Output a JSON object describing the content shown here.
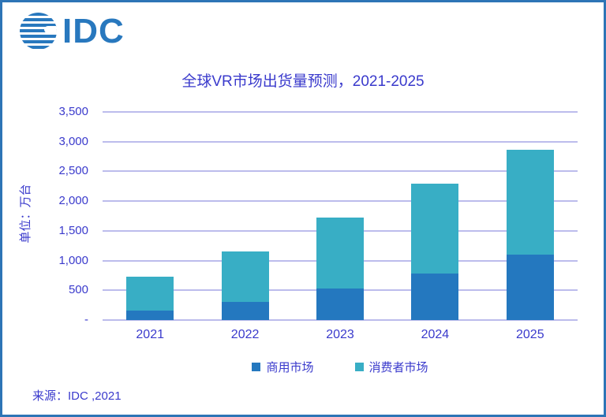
{
  "logo": {
    "text": "IDC"
  },
  "header": {
    "title": "全球VR市场出货量预测，2021-2025"
  },
  "source": "来源：IDC ,2021",
  "colors": {
    "frame_border": "#2e75b6",
    "logo_blue": "#2878be",
    "commercial_blue": "#2478bf",
    "consumer_teal": "#38aec5",
    "text_blue": "#3a3acc",
    "gridline": "#bcbcec",
    "background": "#ffffff"
  },
  "chart_data": {
    "type": "bar",
    "stacked": true,
    "title": "全球VR市场出货量预测，2021-2025",
    "xlabel": "",
    "ylabel": "单位：万台",
    "categories": [
      "2021",
      "2022",
      "2023",
      "2024",
      "2025"
    ],
    "series": [
      {
        "name": "商用市场",
        "color": "#2478bf",
        "values": [
          160,
          300,
          530,
          780,
          1100
        ]
      },
      {
        "name": "消费者市场",
        "color": "#38aec5",
        "values": [
          570,
          850,
          1190,
          1510,
          1760
        ]
      }
    ],
    "totals": [
      730,
      1150,
      1720,
      2290,
      2860
    ],
    "ylim": [
      0,
      3500
    ],
    "ytick_step": 500,
    "ytick_labels": [
      "-",
      "500",
      "1,000",
      "1,500",
      "2,000",
      "2,500",
      "3,000",
      "3,500"
    ],
    "grid": true,
    "legend_position": "bottom"
  }
}
